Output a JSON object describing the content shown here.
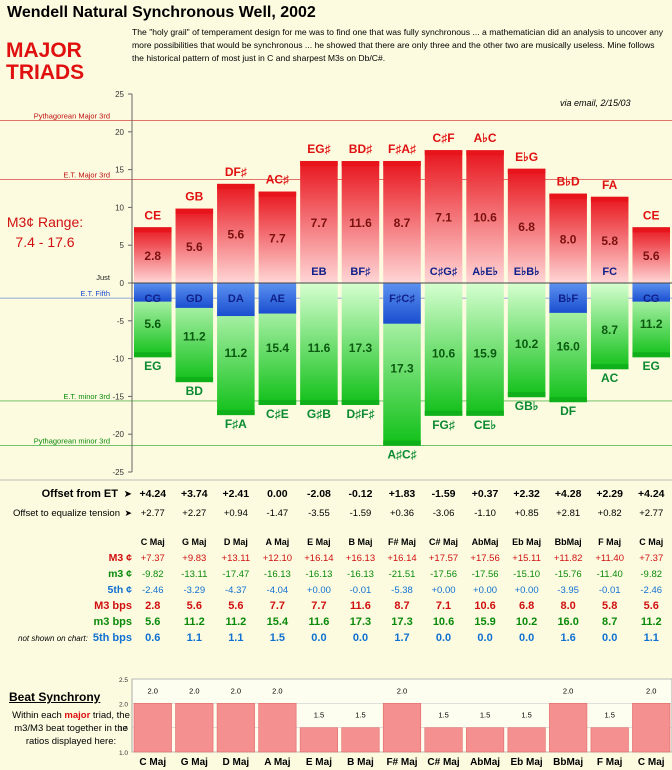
{
  "title": "Wendell Natural Synchronous Well, 2002",
  "intro": "The \"holy grail\" of temperament design for me was to find one that was fully synchronous ... a mathematician did an analysis to uncover any more possibilities that would be synchronous ... he showed that there are only three and the other two are musically useless. Mine follows the historical pattern of most just in C and sharpest M3s on Db/C#.",
  "heading_line1": "MAJOR",
  "heading_line2": "TRIADS",
  "range_line1": "M3¢ Range:",
  "range_line2": "7.4 - 17.6",
  "email_note": "via email, 2/15/03",
  "colors": {
    "major_red": "#e8141c",
    "fifth_blue": "#1a5ad8",
    "minor_green": "#10b01a",
    "cents_red": "#d01010",
    "cents_green": "#0a8a0a",
    "cents_blue": "#1070d0"
  },
  "chart_data": {
    "type": "bar",
    "ylim": [
      -25,
      25
    ],
    "yticks": [
      25,
      20,
      15,
      10,
      5,
      0,
      -5,
      -10,
      -15,
      -20,
      -25
    ],
    "reference_lines": [
      {
        "label": "Pythagorean Major 3rd",
        "y": 21.5
      },
      {
        "label": "E.T. Major 3rd",
        "y": 13.7
      },
      {
        "label": "Just",
        "y": 0
      },
      {
        "label": "E.T. Fifth",
        "y": -2.0
      },
      {
        "label": "E.T. minor 3rd",
        "y": -15.6
      },
      {
        "label": "Pythagorean minor 3rd",
        "y": -21.5
      }
    ],
    "keys": [
      {
        "top": "CE",
        "m3top": "2.8",
        "fifth": "CG",
        "m3": "5.6",
        "bottom": "EG",
        "M3": 7.37,
        "m3c": -9.82,
        "P5": -2.46
      },
      {
        "top": "GB",
        "m3top": "5.6",
        "fifth": "GD",
        "m3": "11.2",
        "bottom": "BD",
        "M3": 9.83,
        "m3c": -13.11,
        "P5": -3.29
      },
      {
        "top": "DF♯",
        "m3top": "5.6",
        "fifth": "DA",
        "m3": "11.2",
        "bottom": "F♯A",
        "M3": 13.11,
        "m3c": -17.47,
        "P5": -4.37
      },
      {
        "top": "AC♯",
        "m3top": "7.7",
        "fifth": "AE",
        "m3": "15.4",
        "bottom": "C♯E",
        "M3": 12.1,
        "m3c": -16.13,
        "P5": -4.04
      },
      {
        "top": "EG♯",
        "m3top": "7.7",
        "fifth": "EB",
        "m3": "11.6",
        "bottom": "G♯B",
        "M3": 16.14,
        "m3c": -16.13,
        "P5": 0.0
      },
      {
        "top": "BD♯",
        "m3top": "11.6",
        "fifth": "BF♯",
        "m3": "17.3",
        "bottom": "D♯F♯",
        "M3": 16.13,
        "m3c": -16.13,
        "P5": -0.01
      },
      {
        "top": "F♯A♯",
        "m3top": "8.7",
        "fifth": "F♯C♯",
        "m3": "17.3",
        "bottom": "A♯C♯",
        "M3": 16.14,
        "m3c": -21.51,
        "P5": -5.38
      },
      {
        "top": "C♯F",
        "m3top": "7.1",
        "fifth": "C♯G♯",
        "m3": "10.6",
        "bottom": "FG♯",
        "M3": 17.57,
        "m3c": -17.56,
        "P5": 0.0
      },
      {
        "top": "A♭C",
        "m3top": "10.6",
        "fifth": "A♭E♭",
        "m3": "15.9",
        "bottom": "CE♭",
        "M3": 17.56,
        "m3c": -17.56,
        "P5": 0.0
      },
      {
        "top": "E♭G",
        "m3top": "6.8",
        "fifth": "E♭B♭",
        "m3": "10.2",
        "bottom": "GB♭",
        "M3": 15.11,
        "m3c": -15.1,
        "P5": 0.0
      },
      {
        "top": "B♭D",
        "m3top": "8.0",
        "fifth": "B♭F",
        "m3": "16.0",
        "bottom": "DF",
        "M3": 11.82,
        "m3c": -15.76,
        "P5": -3.95
      },
      {
        "top": "FA",
        "m3top": "5.8",
        "fifth": "FC",
        "m3": "8.7",
        "bottom": "AC",
        "M3": 11.4,
        "m3c": -11.4,
        "P5": -0.01
      },
      {
        "top": "CE",
        "m3top": "5.6",
        "fifth": "CG",
        "m3": "11.2",
        "bottom": "EG",
        "M3": 7.37,
        "m3c": -9.82,
        "P5": -2.46
      }
    ],
    "columns": [
      "C Maj",
      "G Maj",
      "D Maj",
      "A Maj",
      "E Maj",
      "B Maj",
      "F# Maj",
      "C# Maj",
      "AbMaj",
      "Eb Maj",
      "BbMaj",
      "F Maj",
      "C Maj"
    ],
    "offset_et_label": "Offset from ET",
    "offset_et": [
      "+4.24",
      "+3.74",
      "+2.41",
      "0.00",
      "-2.08",
      "-0.12",
      "+1.83",
      "-1.59",
      "+0.37",
      "+2.32",
      "+4.28",
      "+2.29",
      "+4.24"
    ],
    "offset_eq_label": "Offset to equalize tension",
    "offset_eq": [
      "+2.77",
      "+2.27",
      "+0.94",
      "-1.47",
      "-3.55",
      "-1.59",
      "+0.36",
      "-3.06",
      "-1.10",
      "+0.85",
      "+2.81",
      "+0.82",
      "+2.77"
    ],
    "rows": [
      {
        "label": "M3 ¢",
        "color": "#d01010",
        "values": [
          "+7.37",
          "+9.83",
          "+13.11",
          "+12.10",
          "+16.14",
          "+16.13",
          "+16.14",
          "+17.57",
          "+17.56",
          "+15.11",
          "+11.82",
          "+11.40",
          "+7.37"
        ]
      },
      {
        "label": "m3 ¢",
        "color": "#0a8a0a",
        "values": [
          "-9.82",
          "-13.11",
          "-17.47",
          "-16.13",
          "-16.13",
          "-16.13",
          "-21.51",
          "-17.56",
          "-17.56",
          "-15.10",
          "-15.76",
          "-11.40",
          "-9.82"
        ]
      },
      {
        "label": "5th ¢",
        "color": "#1070d0",
        "values": [
          "-2.46",
          "-3.29",
          "-4.37",
          "-4.04",
          "+0.00",
          "-0.01",
          "-5.38",
          "+0.00",
          "+0.00",
          "+0.00",
          "-3.95",
          "-0.01",
          "-2.46"
        ]
      },
      {
        "label": "M3 bps",
        "color": "#d01010",
        "values": [
          "2.8",
          "5.6",
          "5.6",
          "7.7",
          "7.7",
          "11.6",
          "8.7",
          "7.1",
          "10.6",
          "6.8",
          "8.0",
          "5.8",
          "5.6"
        ]
      },
      {
        "label": "m3 bps",
        "color": "#0a8a0a",
        "values": [
          "5.6",
          "11.2",
          "11.2",
          "15.4",
          "11.6",
          "17.3",
          "17.3",
          "10.6",
          "15.9",
          "10.2",
          "16.0",
          "8.7",
          "11.2"
        ]
      },
      {
        "label": "5th bps",
        "color": "#1070d0",
        "values": [
          "0.6",
          "1.1",
          "1.1",
          "1.5",
          "0.0",
          "0.0",
          "1.7",
          "0.0",
          "0.0",
          "0.0",
          "1.6",
          "0.0",
          "1.1"
        ]
      }
    ],
    "not_shown_note": "not shown on chart:",
    "beat": {
      "title": "Beat Synchrony",
      "desc_pre": "Within each ",
      "desc_major": "major",
      "desc_post": " triad, the m3/M3 beat together in the ratios displayed here:",
      "ylim": [
        1.0,
        2.5
      ],
      "yticks": [
        "2.5",
        "2.0",
        "1.5",
        "1.0"
      ],
      "values": [
        2.0,
        2.0,
        2.0,
        2.0,
        1.5,
        1.5,
        2.0,
        1.5,
        1.5,
        1.5,
        2.0,
        1.5,
        2.0
      ],
      "labels": [
        "2.0",
        "2.0",
        "2.0",
        "2.0",
        "1.5",
        "1.5",
        "2.0",
        "1.5",
        "1.5",
        "1.5",
        "2.0",
        "1.5",
        "2.0"
      ]
    }
  }
}
